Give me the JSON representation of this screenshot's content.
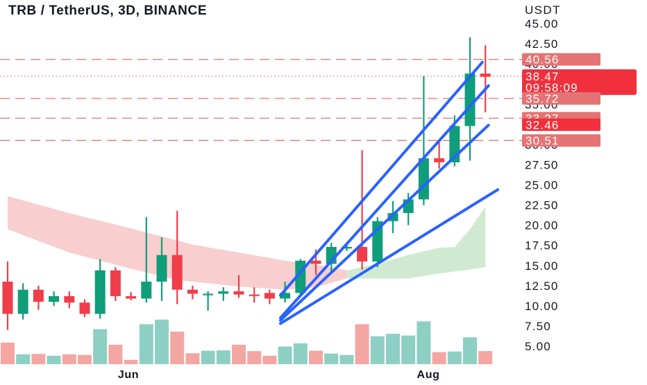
{
  "chart_data": {
    "type": "candlestick",
    "title": "TRB / TetherUS, 3D, BINANCE",
    "currency": "USDT",
    "x_labels": [
      "Jun",
      "Aug"
    ],
    "y_ticks": [
      "5.00",
      "7.50",
      "10.00",
      "12.50",
      "15.00",
      "17.50",
      "20.00",
      "22.50",
      "25.00",
      "27.50",
      "30.00",
      "32.50",
      "35.00",
      "37.50",
      "40.00",
      "42.50",
      "45.00"
    ],
    "ylim": [
      3.5,
      46.5
    ],
    "candles": [
      {
        "o": 13.0,
        "h": 15.5,
        "l": 7.0,
        "c": 9.0
      },
      {
        "o": 9.0,
        "h": 12.8,
        "l": 8.3,
        "c": 12.0
      },
      {
        "o": 12.0,
        "h": 12.5,
        "l": 9.5,
        "c": 10.5
      },
      {
        "o": 10.5,
        "h": 11.8,
        "l": 10.0,
        "c": 11.2
      },
      {
        "o": 11.2,
        "h": 11.8,
        "l": 9.7,
        "c": 10.4
      },
      {
        "o": 10.4,
        "h": 10.8,
        "l": 8.6,
        "c": 9.0
      },
      {
        "o": 9.0,
        "h": 15.8,
        "l": 8.4,
        "c": 14.4
      },
      {
        "o": 14.4,
        "h": 14.8,
        "l": 10.6,
        "c": 11.2
      },
      {
        "o": 11.2,
        "h": 11.7,
        "l": 10.7,
        "c": 10.9
      },
      {
        "o": 10.9,
        "h": 21.0,
        "l": 10.4,
        "c": 13.0
      },
      {
        "o": 13.0,
        "h": 18.5,
        "l": 10.6,
        "c": 16.3
      },
      {
        "o": 16.3,
        "h": 21.8,
        "l": 10.2,
        "c": 12.0
      },
      {
        "o": 12.0,
        "h": 12.5,
        "l": 10.8,
        "c": 11.5
      },
      {
        "o": 11.5,
        "h": 11.8,
        "l": 9.4,
        "c": 11.5
      },
      {
        "o": 11.5,
        "h": 12.3,
        "l": 10.6,
        "c": 11.8
      },
      {
        "o": 11.8,
        "h": 13.8,
        "l": 11.0,
        "c": 11.4
      },
      {
        "o": 11.4,
        "h": 12.3,
        "l": 10.4,
        "c": 11.3
      },
      {
        "o": 11.6,
        "h": 12.0,
        "l": 10.2,
        "c": 10.9
      },
      {
        "o": 10.9,
        "h": 13.0,
        "l": 10.4,
        "c": 11.6
      },
      {
        "o": 11.6,
        "h": 15.8,
        "l": 11.2,
        "c": 15.6
      },
      {
        "o": 15.6,
        "h": 17.0,
        "l": 13.8,
        "c": 15.2
      },
      {
        "o": 15.2,
        "h": 17.8,
        "l": 14.0,
        "c": 17.3
      },
      {
        "o": 17.3,
        "h": 17.8,
        "l": 16.8,
        "c": 17.3
      },
      {
        "o": 17.3,
        "h": 29.3,
        "l": 14.5,
        "c": 15.5
      },
      {
        "o": 15.5,
        "h": 21.0,
        "l": 14.8,
        "c": 20.5
      },
      {
        "o": 20.5,
        "h": 23.0,
        "l": 19.0,
        "c": 21.5
      },
      {
        "o": 21.5,
        "h": 24.0,
        "l": 20.0,
        "c": 23.2
      },
      {
        "o": 23.2,
        "h": 38.5,
        "l": 22.5,
        "c": 28.3
      },
      {
        "o": 28.3,
        "h": 30.5,
        "l": 27.0,
        "c": 27.8
      },
      {
        "o": 27.8,
        "h": 33.6,
        "l": 27.3,
        "c": 32.3
      },
      {
        "o": 32.3,
        "h": 43.3,
        "l": 28.0,
        "c": 38.8
      },
      {
        "o": 38.8,
        "h": 42.3,
        "l": 34.0,
        "c": 38.4
      }
    ],
    "volume": {
      "max_value": 10,
      "values": [
        6.1,
        2.8,
        2.9,
        2.4,
        2.8,
        2.6,
        9.9,
        5.5,
        1.2,
        11.3,
        12.6,
        9.2,
        3.1,
        3.8,
        3.9,
        5.5,
        3.7,
        2.4,
        5.0,
        5.9,
        3.8,
        3.0,
        2.6,
        11.3,
        7.9,
        8.6,
        8.1,
        12.1,
        3.4,
        3.6,
        7.6,
        3.7
      ]
    },
    "price_labels": [
      {
        "value": "40.56",
        "style": "light"
      },
      {
        "value": "38.47",
        "countdown": "09:58:09",
        "style": "current"
      },
      {
        "value": "35.72",
        "style": "light"
      },
      {
        "value": "33.27",
        "style": "light"
      },
      {
        "value": "32.46",
        "style": "strong"
      },
      {
        "value": "30.51",
        "style": "light"
      }
    ],
    "dashed_levels": [
      40.56,
      35.72,
      33.27,
      30.51
    ],
    "current_price_line": 38.47,
    "trendlines": [
      {
        "from": [
          17.7,
          11.3
        ],
        "to": [
          30.8,
          40.2
        ]
      },
      {
        "from": [
          17.7,
          8.5
        ],
        "to": [
          31.2,
          37.3
        ]
      },
      {
        "from": [
          17.7,
          8.2
        ],
        "to": [
          31.2,
          32.4
        ]
      },
      {
        "from": [
          17.7,
          7.8
        ],
        "to": [
          31.8,
          24.4
        ]
      }
    ],
    "cloud": {
      "red_upper": [
        [
          0,
          23.6
        ],
        [
          4,
          21.5
        ],
        [
          8,
          19.6
        ],
        [
          12,
          17.6
        ],
        [
          15,
          16.6
        ],
        [
          18,
          15.6
        ],
        [
          20,
          15.1
        ],
        [
          22,
          14.4
        ]
      ],
      "red_lower": [
        [
          0,
          19.5
        ],
        [
          4,
          16.6
        ],
        [
          8,
          14.6
        ],
        [
          11,
          13.2
        ],
        [
          15,
          12.4
        ],
        [
          18,
          12.0
        ],
        [
          20,
          12.3
        ],
        [
          22,
          13.4
        ]
      ],
      "green_upper": [
        [
          22,
          14.4
        ],
        [
          24,
          15.2
        ],
        [
          26,
          16.3
        ],
        [
          28,
          17.2
        ],
        [
          29,
          17.3
        ],
        [
          30,
          19.5
        ],
        [
          31,
          22.3
        ]
      ],
      "green_lower": [
        [
          22,
          13.4
        ],
        [
          24,
          13.4
        ],
        [
          26,
          13.4
        ],
        [
          28,
          14.0
        ],
        [
          30,
          14.5
        ],
        [
          31,
          14.8
        ]
      ]
    },
    "colors": {
      "up": "#0f9d7a",
      "down": "#ef3e4a",
      "trendline": "#2962ff",
      "level": "#e57373",
      "label_light": "#e57373",
      "label_strong": "#f0313d",
      "volume_up": "#8ecfc4",
      "volume_down": "#f4a6a3",
      "cloud_red": "#f7c6c5",
      "cloud_green": "#c8e6c9"
    }
  }
}
